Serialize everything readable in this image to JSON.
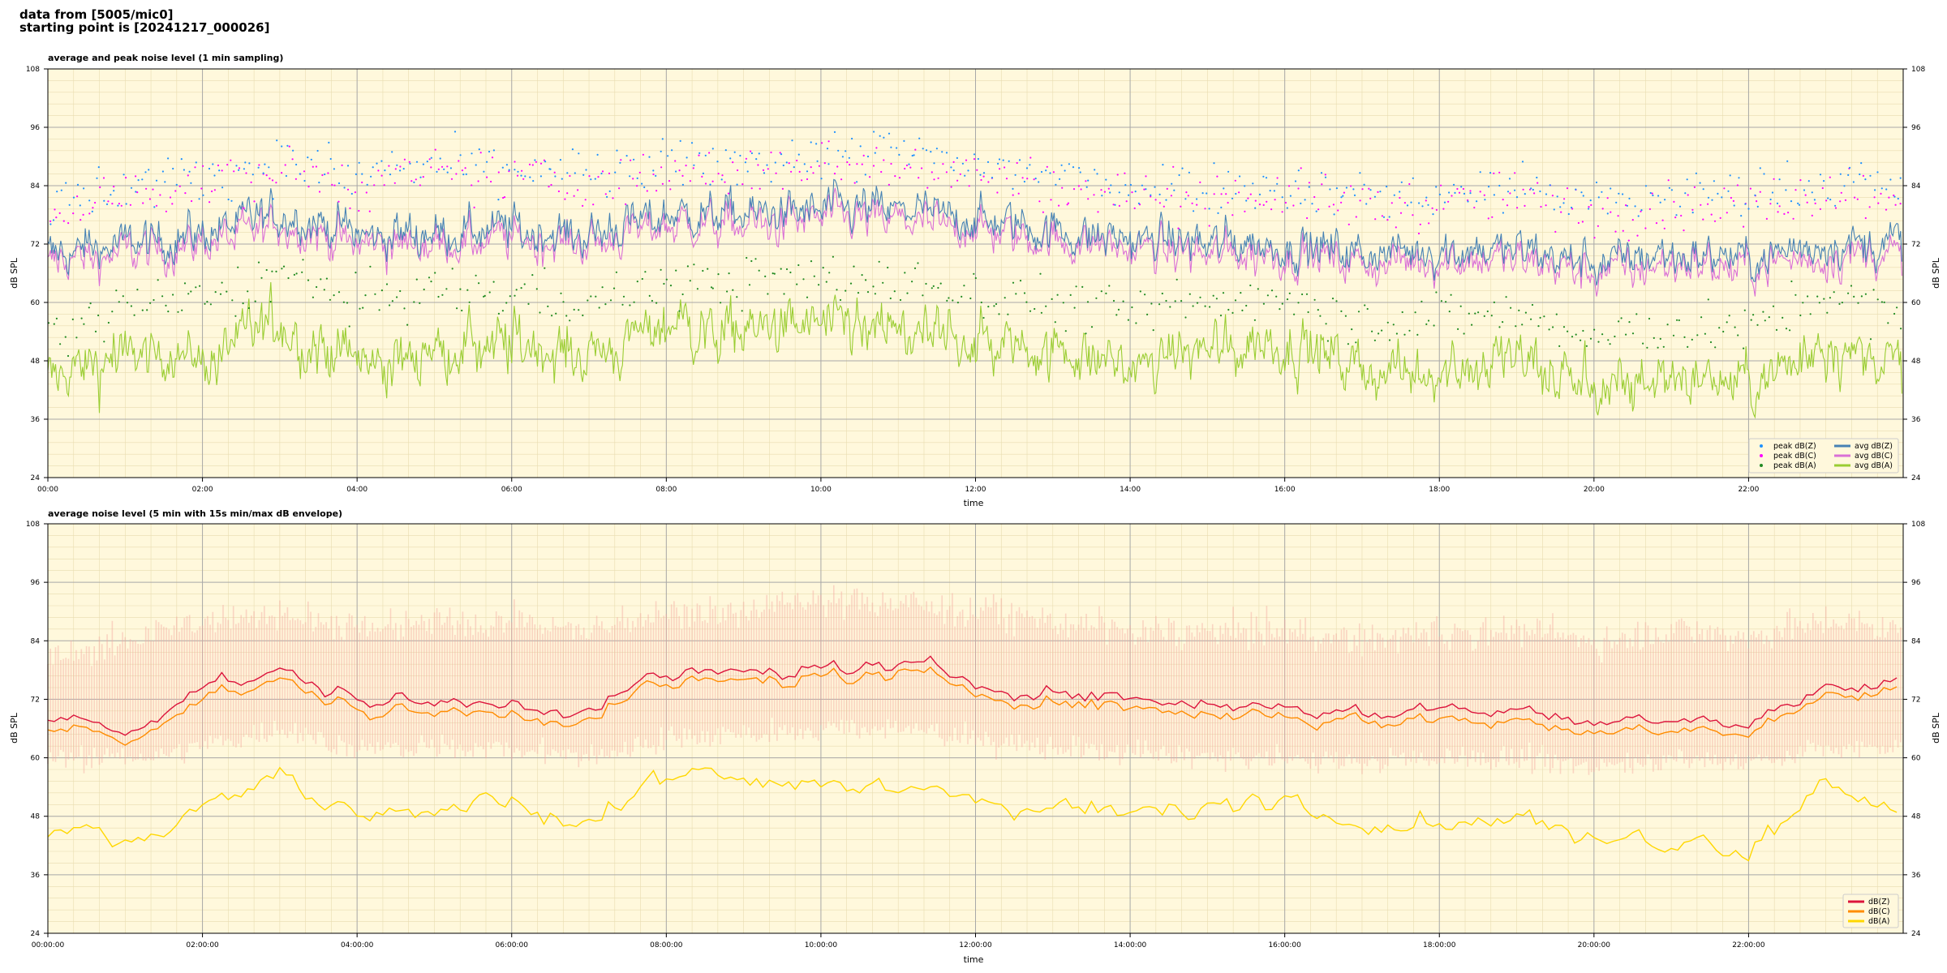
{
  "header": {
    "line1": "data from [5005/mic0]",
    "line2": "starting point is [20241217_000026]"
  },
  "colors": {
    "plot_bg": "#fff8dc",
    "peak_z": "#1e90ff",
    "peak_c": "#ff00ff",
    "peak_a": "#228b22",
    "avg_z": "#4682b4",
    "avg_c": "#da70d6",
    "avg_a": "#9acd32",
    "env": "#f4a9a0",
    "dbz": "#dc143c",
    "dbc": "#ff8c00",
    "dba": "#ffd700"
  },
  "chart_data": [
    {
      "type": "line",
      "title": "average and peak noise level (1 min sampling)",
      "xlabel": "time",
      "ylabel": "dB SPL",
      "ylabel_right": "dB SPL",
      "xlim_hours": [
        0,
        24
      ],
      "ylim": [
        24,
        108
      ],
      "y_ticks": [
        "24",
        "36",
        "48",
        "60",
        "72",
        "84",
        "96",
        "108"
      ],
      "x_tick_labels": [
        "00:00",
        "02:00",
        "04:00",
        "06:00",
        "08:00",
        "10:00",
        "12:00",
        "14:00",
        "16:00",
        "18:00",
        "20:00",
        "22:00"
      ],
      "grid": true,
      "legend_position": "lower-right",
      "legend": [
        "peak dB(Z)",
        "peak dB(C)",
        "peak dB(A)",
        "avg dB(Z)",
        "avg dB(C)",
        "avg dB(A)"
      ],
      "series_hourly_approx": {
        "x_hours": [
          0,
          1,
          2,
          3,
          4,
          5,
          6,
          7,
          8,
          9,
          10,
          11,
          12,
          13,
          14,
          15,
          16,
          17,
          18,
          19,
          20,
          21,
          22,
          23,
          24
        ],
        "avg dB(Z)": [
          70,
          72,
          74,
          78,
          74,
          74,
          75,
          74,
          78,
          78,
          79,
          79,
          77,
          75,
          73,
          72,
          72,
          70,
          71,
          71,
          68,
          70,
          69,
          72,
          72
        ],
        "avg dB(C)": [
          68,
          70,
          72,
          76,
          72,
          72,
          73,
          72,
          76,
          76,
          77,
          77,
          75,
          73,
          71,
          70,
          70,
          68,
          69,
          69,
          66,
          68,
          67,
          70,
          70
        ],
        "avg dB(A)": [
          43,
          50,
          48,
          56,
          48,
          50,
          52,
          48,
          55,
          54,
          55,
          54,
          52,
          50,
          47,
          50,
          52,
          46,
          47,
          48,
          42,
          45,
          43,
          52,
          47
        ],
        "peak dB(Z)": [
          80,
          84,
          86,
          89,
          86,
          88,
          88,
          86,
          88,
          89,
          90,
          91,
          88,
          86,
          84,
          84,
          84,
          82,
          82,
          84,
          80,
          82,
          82,
          85,
          84
        ],
        "peak dB(C)": [
          78,
          82,
          84,
          87,
          84,
          86,
          86,
          84,
          86,
          87,
          88,
          89,
          86,
          84,
          82,
          82,
          82,
          80,
          80,
          82,
          78,
          80,
          80,
          83,
          82
        ],
        "peak dB(A)": [
          52,
          60,
          60,
          66,
          60,
          62,
          62,
          60,
          64,
          64,
          65,
          64,
          62,
          60,
          58,
          60,
          62,
          56,
          57,
          58,
          52,
          55,
          54,
          62,
          56
        ]
      }
    },
    {
      "type": "line",
      "title": "average noise level (5 min with 15s min/max dB envelope)",
      "xlabel": "time",
      "ylabel": "dB SPL",
      "ylabel_right": "dB SPL",
      "xlim_hours": [
        0,
        24
      ],
      "ylim": [
        24,
        108
      ],
      "y_ticks": [
        "24",
        "36",
        "48",
        "60",
        "72",
        "84",
        "96",
        "108"
      ],
      "x_tick_labels": [
        "00:00:00",
        "02:00:00",
        "04:00:00",
        "06:00:00",
        "08:00:00",
        "10:00:00",
        "12:00:00",
        "14:00:00",
        "16:00:00",
        "18:00:00",
        "20:00:00",
        "22:00:00"
      ],
      "grid": true,
      "legend_position": "lower-right",
      "legend": [
        "dB(Z)",
        "dB(C)",
        "dB(A)"
      ],
      "series_hourly_approx": {
        "x_hours": [
          0,
          1,
          2,
          3,
          4,
          5,
          6,
          7,
          8,
          9,
          10,
          11,
          12,
          13,
          14,
          15,
          16,
          17,
          18,
          19,
          20,
          21,
          22,
          23,
          24
        ],
        "dB(Z)": [
          69,
          66,
          75,
          77,
          72,
          71,
          72,
          70,
          77,
          77,
          79,
          78,
          76,
          74,
          72,
          71,
          71,
          69,
          70,
          70,
          67,
          69,
          68,
          74,
          76
        ],
        "dB(C)": [
          67,
          64,
          73,
          75,
          70,
          69,
          70,
          68,
          75,
          75,
          77,
          76,
          74,
          72,
          70,
          69,
          69,
          67,
          68,
          68,
          65,
          67,
          66,
          72,
          74
        ],
        "dB(A)": [
          46,
          44,
          51,
          55,
          48,
          50,
          52,
          48,
          55,
          54,
          55,
          54,
          52,
          50,
          48,
          50,
          53,
          48,
          47,
          49,
          42,
          45,
          43,
          55,
          50
        ],
        "envelope_min": [
          60,
          60,
          62,
          66,
          62,
          62,
          62,
          60,
          64,
          65,
          66,
          66,
          64,
          62,
          61,
          60,
          60,
          59,
          60,
          60,
          58,
          60,
          59,
          62,
          62
        ],
        "envelope_max": [
          80,
          84,
          88,
          90,
          86,
          88,
          88,
          86,
          90,
          90,
          92,
          92,
          90,
          88,
          86,
          86,
          86,
          84,
          86,
          86,
          84,
          86,
          85,
          88,
          86
        ]
      }
    }
  ]
}
